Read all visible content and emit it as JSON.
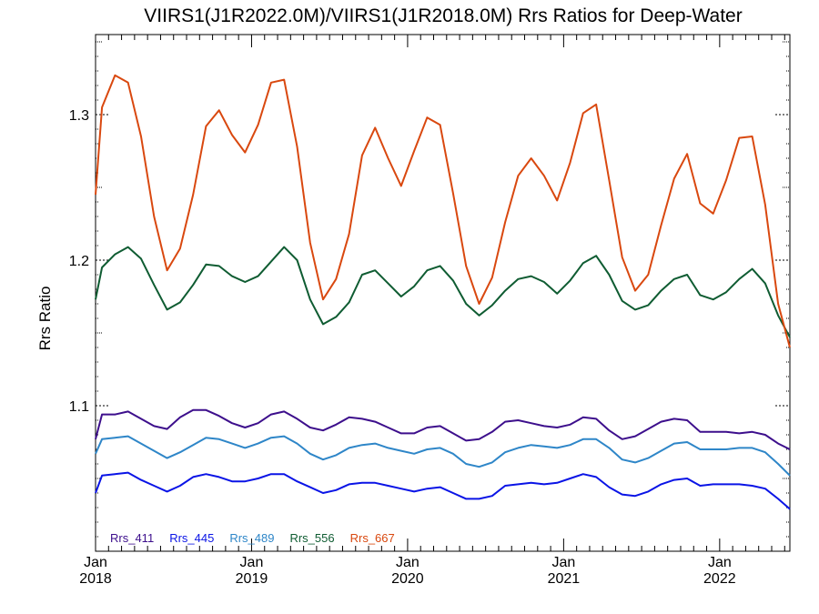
{
  "chart_data": {
    "type": "line",
    "title": "VIIRS1(J1R2022.0M)/VIIRS1(J1R2018.0M)  Rrs Ratios for Deep-Water",
    "xlabel": "",
    "ylabel": "Rrs Ratio",
    "xlim": [
      2018.0,
      2022.45
    ],
    "ylim": [
      1.0,
      1.355
    ],
    "yticks": [
      {
        "value": 1.1,
        "label": "1.1"
      },
      {
        "value": 1.2,
        "label": "1.2"
      },
      {
        "value": 1.3,
        "label": "1.3"
      }
    ],
    "xticks": [
      {
        "value": 2018,
        "month": "Jan",
        "year": "2018"
      },
      {
        "value": 2019,
        "month": "Jan",
        "year": "2019"
      },
      {
        "value": 2020,
        "month": "Jan",
        "year": "2020"
      },
      {
        "value": 2021,
        "month": "Jan",
        "year": "2021"
      },
      {
        "value": 2022,
        "month": "Jan",
        "year": "2022"
      }
    ],
    "grid": false,
    "legend_position": "bottom-left",
    "x": [
      2018.0,
      2018.0417,
      2018.125,
      2018.2083,
      2018.2917,
      2018.375,
      2018.4583,
      2018.5417,
      2018.625,
      2018.7083,
      2018.7917,
      2018.875,
      2018.9583,
      2019.0417,
      2019.125,
      2019.2083,
      2019.2917,
      2019.375,
      2019.4583,
      2019.5417,
      2019.625,
      2019.7083,
      2019.7917,
      2019.875,
      2019.9583,
      2020.0417,
      2020.125,
      2020.2083,
      2020.2917,
      2020.375,
      2020.4583,
      2020.5417,
      2020.625,
      2020.7083,
      2020.7917,
      2020.875,
      2020.9583,
      2021.0417,
      2021.125,
      2021.2083,
      2021.2917,
      2021.375,
      2021.4583,
      2021.5417,
      2021.625,
      2021.7083,
      2021.7917,
      2021.875,
      2021.9583,
      2022.0417,
      2022.125,
      2022.2083,
      2022.2917,
      2022.375,
      2022.45
    ],
    "series": [
      {
        "name": "Rrs_411",
        "color": "#3d0f8c",
        "values": [
          1.077,
          1.094,
          1.094,
          1.096,
          1.091,
          1.086,
          1.084,
          1.092,
          1.097,
          1.097,
          1.093,
          1.088,
          1.085,
          1.088,
          1.094,
          1.096,
          1.091,
          1.085,
          1.083,
          1.087,
          1.092,
          1.091,
          1.089,
          1.085,
          1.081,
          1.081,
          1.085,
          1.086,
          1.081,
          1.076,
          1.077,
          1.082,
          1.089,
          1.09,
          1.088,
          1.086,
          1.085,
          1.087,
          1.092,
          1.091,
          1.083,
          1.077,
          1.079,
          1.084,
          1.089,
          1.091,
          1.09,
          1.082,
          1.082,
          1.082,
          1.081,
          1.082,
          1.08,
          1.074,
          1.07
        ]
      },
      {
        "name": "Rrs_445",
        "color": "#0a14e6",
        "values": [
          1.04,
          1.052,
          1.053,
          1.054,
          1.049,
          1.045,
          1.041,
          1.045,
          1.051,
          1.053,
          1.051,
          1.048,
          1.048,
          1.05,
          1.053,
          1.053,
          1.048,
          1.044,
          1.04,
          1.042,
          1.046,
          1.047,
          1.047,
          1.045,
          1.043,
          1.041,
          1.043,
          1.044,
          1.04,
          1.036,
          1.036,
          1.038,
          1.045,
          1.046,
          1.047,
          1.046,
          1.047,
          1.05,
          1.053,
          1.051,
          1.044,
          1.039,
          1.038,
          1.041,
          1.046,
          1.049,
          1.05,
          1.045,
          1.046,
          1.046,
          1.046,
          1.045,
          1.043,
          1.036,
          1.029
        ]
      },
      {
        "name": "Rrs_489",
        "color": "#2e86c8",
        "values": [
          1.067,
          1.077,
          1.078,
          1.079,
          1.074,
          1.069,
          1.064,
          1.068,
          1.073,
          1.078,
          1.077,
          1.074,
          1.071,
          1.074,
          1.078,
          1.079,
          1.074,
          1.067,
          1.063,
          1.066,
          1.071,
          1.073,
          1.074,
          1.071,
          1.069,
          1.067,
          1.07,
          1.071,
          1.067,
          1.06,
          1.058,
          1.061,
          1.068,
          1.071,
          1.073,
          1.072,
          1.071,
          1.073,
          1.077,
          1.077,
          1.071,
          1.063,
          1.061,
          1.064,
          1.069,
          1.074,
          1.075,
          1.07,
          1.07,
          1.07,
          1.071,
          1.071,
          1.068,
          1.06,
          1.052
        ]
      },
      {
        "name": "Rrs_556",
        "color": "#0f5c32",
        "values": [
          1.173,
          1.195,
          1.204,
          1.209,
          1.201,
          1.183,
          1.166,
          1.171,
          1.183,
          1.197,
          1.196,
          1.189,
          1.185,
          1.189,
          1.199,
          1.209,
          1.2,
          1.173,
          1.156,
          1.161,
          1.171,
          1.19,
          1.193,
          1.184,
          1.175,
          1.182,
          1.193,
          1.196,
          1.186,
          1.17,
          1.162,
          1.169,
          1.179,
          1.187,
          1.189,
          1.185,
          1.177,
          1.186,
          1.198,
          1.203,
          1.19,
          1.172,
          1.166,
          1.169,
          1.179,
          1.187,
          1.19,
          1.176,
          1.173,
          1.178,
          1.187,
          1.194,
          1.184,
          1.162,
          1.147
        ]
      },
      {
        "name": "Rrs_667",
        "color": "#d9480f",
        "values": [
          1.245,
          1.305,
          1.327,
          1.322,
          1.285,
          1.23,
          1.193,
          1.208,
          1.245,
          1.292,
          1.303,
          1.286,
          1.274,
          1.293,
          1.322,
          1.324,
          1.278,
          1.212,
          1.173,
          1.187,
          1.218,
          1.272,
          1.291,
          1.27,
          1.251,
          1.275,
          1.298,
          1.293,
          1.246,
          1.196,
          1.17,
          1.188,
          1.226,
          1.258,
          1.27,
          1.258,
          1.241,
          1.267,
          1.301,
          1.307,
          1.255,
          1.202,
          1.179,
          1.19,
          1.224,
          1.256,
          1.273,
          1.239,
          1.232,
          1.255,
          1.284,
          1.285,
          1.238,
          1.17,
          1.14
        ]
      }
    ]
  }
}
